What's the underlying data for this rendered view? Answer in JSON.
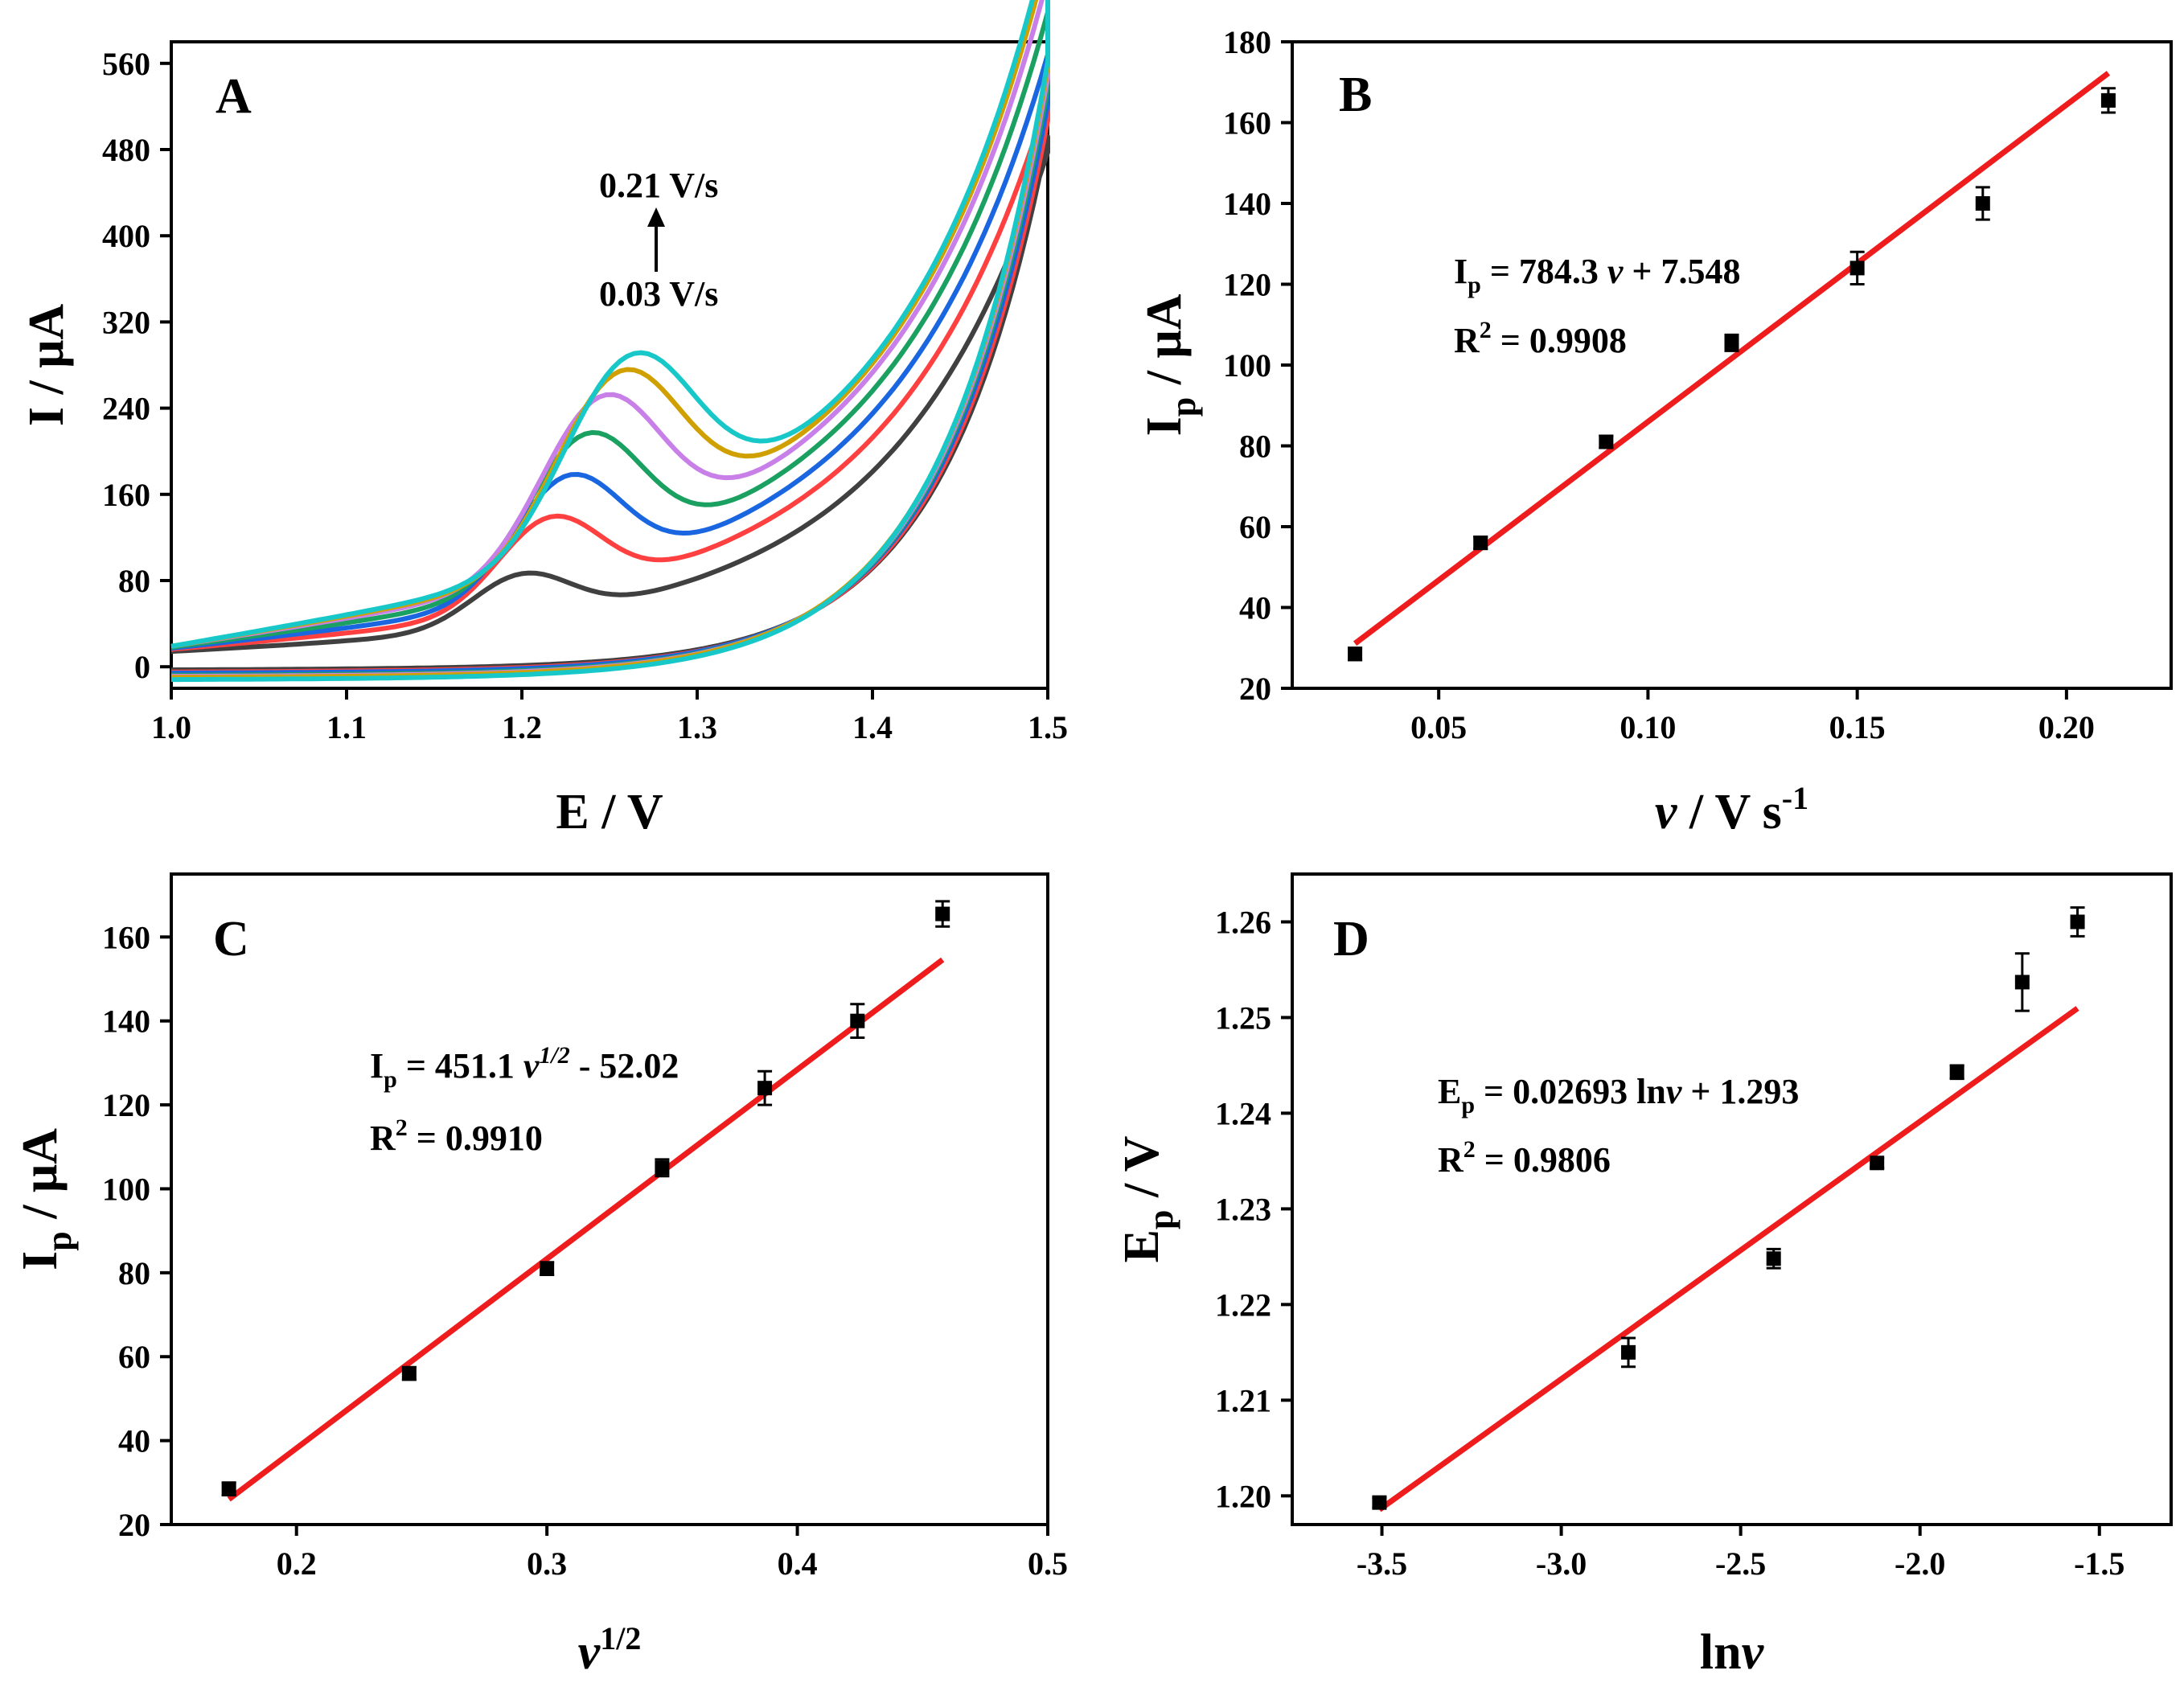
{
  "colors": {
    "fit_line": "#ee1c1c",
    "marker": "#000000",
    "cv": [
      "#404040",
      "#ff4040",
      "#1a66e0",
      "#1aa060",
      "#c880e8",
      "#d0a000",
      "#18c8c8"
    ]
  },
  "chart_data": [
    {
      "panel": "A",
      "type": "line",
      "xlabel": "E / V",
      "ylabel": "I / μA",
      "xlim": [
        1.0,
        1.5
      ],
      "ylim": [
        -20,
        580
      ],
      "x_ticks": [
        "1.0",
        "1.1",
        "1.2",
        "1.3",
        "1.4",
        "1.5"
      ],
      "y_ticks": [
        "0",
        "80",
        "160",
        "240",
        "320",
        "400",
        "480",
        "560"
      ],
      "annotations": {
        "top": "0.21 V/s",
        "bottom": "0.03 V/s"
      },
      "scan_rates": [
        0.03,
        0.06,
        0.09,
        0.12,
        0.15,
        0.18,
        0.21
      ],
      "peak_potentials": [
        1.199,
        1.215,
        1.225,
        1.235,
        1.244,
        1.254,
        1.26
      ],
      "peak_currents": [
        68,
        120,
        158,
        195,
        228,
        248,
        262
      ],
      "anodic_start": [
        15,
        17,
        18,
        19,
        20,
        20,
        20
      ],
      "current_at_1_5V": [
        490,
        505,
        520,
        535,
        545,
        555,
        560
      ],
      "cathodic_start": [
        -3,
        -5,
        -6,
        -8,
        -9,
        -10,
        -12
      ]
    },
    {
      "panel": "B",
      "type": "scatter",
      "xlabel": "v / V s-1",
      "ylabel": "Ip / μA",
      "xlim": [
        0.015,
        0.225
      ],
      "ylim": [
        20,
        180
      ],
      "x_ticks": [
        "0.05",
        "0.10",
        "0.15",
        "0.20"
      ],
      "y_ticks": [
        "20",
        "40",
        "60",
        "80",
        "100",
        "120",
        "140",
        "160",
        "180"
      ],
      "x": [
        0.03,
        0.06,
        0.09,
        0.12,
        0.15,
        0.18,
        0.21
      ],
      "y": [
        28.5,
        56,
        81,
        105.5,
        124,
        140,
        165.5
      ],
      "err": [
        1.5,
        1.5,
        1.5,
        2,
        4,
        4,
        3
      ],
      "fit": {
        "slope": 784.3,
        "intercept": 7.548,
        "x_range": [
          0.03,
          0.21
        ]
      },
      "equation": {
        "lhs": "I",
        "sub": "p",
        "mid": " = 784.3 ",
        "var": "v",
        "rest": " + 7.548"
      },
      "r2": {
        "label": "R",
        "sup": "2",
        "value": " = 0.9908"
      }
    },
    {
      "panel": "C",
      "type": "scatter",
      "xlabel": "v1/2",
      "ylabel": "Ip / μA",
      "xlim": [
        0.15,
        0.5
      ],
      "ylim": [
        20,
        175
      ],
      "x_ticks": [
        "0.2",
        "0.3",
        "0.4",
        "0.5"
      ],
      "y_ticks": [
        "20",
        "40",
        "60",
        "80",
        "100",
        "120",
        "140",
        "160"
      ],
      "x": [
        0.173,
        0.245,
        0.3,
        0.346,
        0.387,
        0.424,
        0.458
      ],
      "y": [
        28.5,
        56,
        81,
        105,
        124,
        140,
        165.5
      ],
      "err": [
        1.5,
        1.5,
        1.5,
        2,
        4,
        4,
        3
      ],
      "fit": {
        "slope": 451.1,
        "intercept": -52.02,
        "x_range": [
          0.173,
          0.458
        ]
      },
      "equation": {
        "lhs": "I",
        "sub": "p",
        "mid": " = 451.1 ",
        "var": "v",
        "var_sup": "1/2",
        "rest": " - 52.02"
      },
      "r2": {
        "label": "R",
        "sup": "2",
        "value": " = 0.9910"
      }
    },
    {
      "panel": "D",
      "type": "scatter",
      "xlabel": "lnv",
      "ylabel": "Ep / V",
      "xlim": [
        -3.75,
        -1.3
      ],
      "ylim": [
        1.197,
        1.265
      ],
      "x_ticks": [
        "-3.5",
        "-3.0",
        "-2.5",
        "-2.0",
        "-1.5"
      ],
      "y_ticks": [
        "1.20",
        "1.21",
        "1.22",
        "1.23",
        "1.24",
        "1.25",
        "1.26"
      ],
      "x": [
        -3.507,
        -2.813,
        -2.408,
        -2.12,
        -1.897,
        -1.715,
        -1.561
      ],
      "y": [
        1.1993,
        1.215,
        1.2248,
        1.2348,
        1.2443,
        1.2537,
        1.26
      ],
      "err": [
        0.0005,
        0.0015,
        0.001,
        0.0005,
        0.0007,
        0.003,
        0.0015
      ],
      "fit": {
        "slope": 0.02693,
        "intercept": 1.293,
        "x_range": [
          -3.507,
          -1.561
        ]
      },
      "equation": {
        "lhs": "E",
        "sub": "p",
        "mid": " = 0.02693 ln",
        "var": "v",
        "rest": " + 1.293"
      },
      "r2": {
        "label": "R",
        "sup": "2",
        "value": " = 0.9806"
      }
    }
  ]
}
